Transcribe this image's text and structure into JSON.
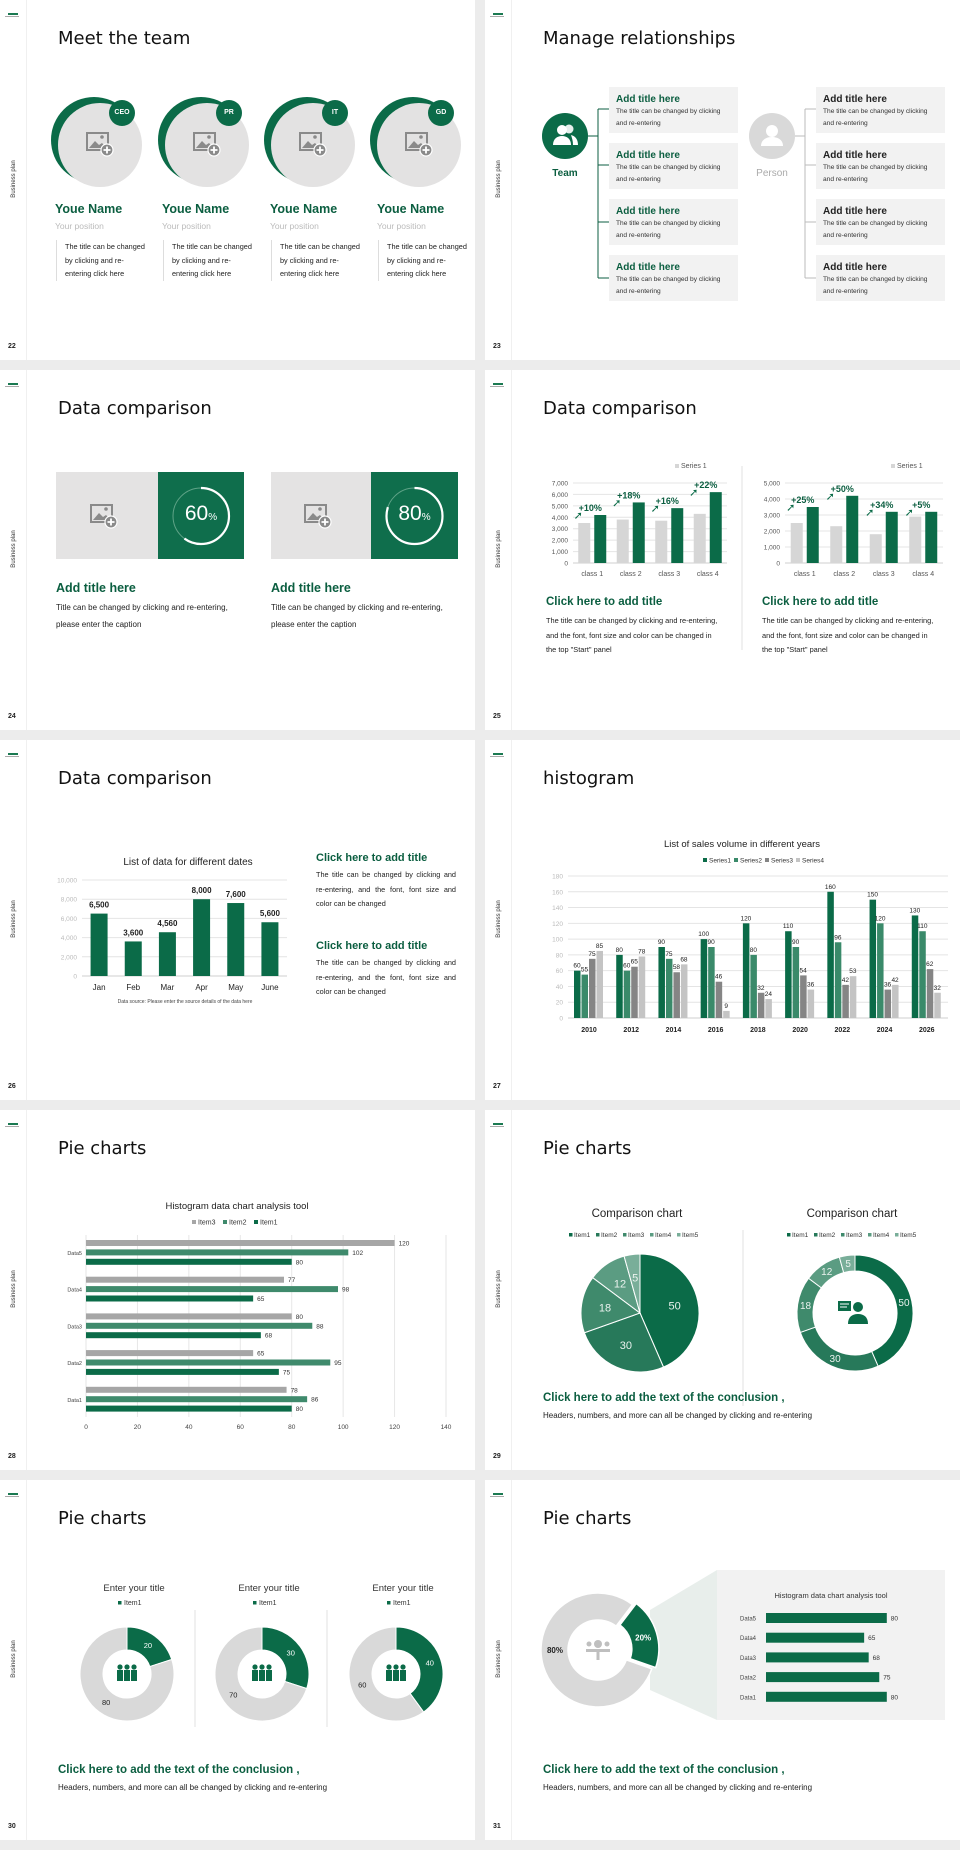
{
  "side_label": "Business plan",
  "colors": {
    "green": "#0b6b48",
    "green2": "#3a8a6a",
    "green_text": "#0b5e40",
    "gray": "#d6d6d6",
    "dark_gray": "#8a8a8a",
    "panel": "#f2f2f2"
  },
  "s22": {
    "number": "22",
    "title": "Meet the team",
    "members": [
      {
        "badge": "CEO",
        "name": "Youe Name",
        "position": "Your position",
        "desc": "The title can be changed by clicking and re-entering click here"
      },
      {
        "badge": "PR",
        "name": "Youe Name",
        "position": "Your position",
        "desc": "The title can be changed by clicking and re-entering click here"
      },
      {
        "badge": "IT",
        "name": "Youe Name",
        "position": "Your position",
        "desc": "The title can be changed by clicking and re-entering click here"
      },
      {
        "badge": "GD",
        "name": "Youe Name",
        "position": "Your position",
        "desc": "The title can be changed by clicking and re-entering click here"
      }
    ]
  },
  "s23": {
    "number": "23",
    "title": "Manage relationships",
    "team_label": "Team",
    "person_label": "Person",
    "left_boxes": [
      {
        "title": "Add title here",
        "desc": "The title can be changed by clicking and re-entering"
      },
      {
        "title": "Add title here",
        "desc": "The title can be changed by clicking and re-entering"
      },
      {
        "title": "Add title here",
        "desc": "The title can be changed by clicking and re-entering"
      },
      {
        "title": "Add title here",
        "desc": "The title can be changed by clicking and re-entering"
      }
    ],
    "right_boxes": [
      {
        "title": "Add title here",
        "desc": "The title can be changed by clicking and re-entering"
      },
      {
        "title": "Add title here",
        "desc": "The title can be changed by clicking and re-entering"
      },
      {
        "title": "Add title here",
        "desc": "The title can be changed by clicking and re-entering"
      },
      {
        "title": "Add title here",
        "desc": "The title can be changed by clicking and re-entering"
      }
    ]
  },
  "s24": {
    "number": "24",
    "title": "Data comparison",
    "cards": [
      {
        "percent": 60,
        "value": "60",
        "unit": "%",
        "heading": "Add title here",
        "desc": "Title can be changed by clicking and re-entering, please enter the caption"
      },
      {
        "percent": 80,
        "value": "80",
        "unit": "%",
        "heading": "Add title here",
        "desc": "Title can be changed by clicking and re-entering, please enter the caption"
      }
    ]
  },
  "s25": {
    "number": "25",
    "title": "Data comparison",
    "blocks": [
      {
        "heading": "Click here to add title",
        "desc": "The title can be changed by clicking and re-entering, and the font, font size and color can be changed in the top \"Start\" panel"
      },
      {
        "heading": "Click here to add title",
        "desc": "The title can be changed by clicking and re-entering, and the font, font size and color can be changed in the top \"Start\" panel"
      }
    ]
  },
  "s26": {
    "number": "26",
    "title": "Data comparison",
    "blocks": [
      {
        "heading": "Click here to add title",
        "desc": "The title can be changed by clicking and re-entering, and the font, font size and color can be changed"
      },
      {
        "heading": "Click here to add title",
        "desc": "The title can be changed by clicking and re-entering, and the font, font size and color can be changed"
      }
    ]
  },
  "s27": {
    "number": "27",
    "title": "histogram"
  },
  "s28": {
    "number": "28",
    "title": "Pie charts"
  },
  "s29": {
    "number": "29",
    "title": "Pie charts",
    "conclusion": "Click here to add the text of the conclusion ,",
    "conclusion_desc": "Headers, numbers, and more can all be changed by clicking and re-entering"
  },
  "s30": {
    "number": "30",
    "title": "Pie charts",
    "conclusion": "Click here to add the text of the conclusion ,",
    "conclusion_desc": "Headers, numbers, and more can all be changed by clicking and re-entering"
  },
  "s31": {
    "number": "31",
    "title": "Pie charts",
    "conclusion": "Click here to add the text of the conclusion ,",
    "conclusion_desc": "Headers, numbers, and more can all be changed by clicking and re-entering"
  },
  "chart_data": [
    {
      "type": "bar",
      "categories": [
        "class 1",
        "class 2",
        "class 3",
        "class 4"
      ],
      "ylim": [
        0,
        7000
      ],
      "yticks": [
        "0",
        "1,000",
        "2,000",
        "3,000",
        "4,000",
        "5,000",
        "6,000",
        "7,000"
      ],
      "legend": "Series 1",
      "series": [
        {
          "name": "Series 1",
          "values": [
            3500,
            3800,
            3700,
            4300
          ],
          "color": "#d6d6d6"
        },
        {
          "values": [
            4200,
            5300,
            4800,
            6200
          ],
          "color": "#0b6b48"
        }
      ],
      "annotations": [
        "+10%",
        "+18%",
        "+16%",
        "+22%"
      ],
      "grid": true
    },
    {
      "type": "bar",
      "categories": [
        "class 1",
        "class 2",
        "class 3",
        "class 4"
      ],
      "ylim": [
        0,
        5000
      ],
      "yticks": [
        "0",
        "1,000",
        "2,000",
        "3,000",
        "4,000",
        "5,000"
      ],
      "legend": "Series 1",
      "series": [
        {
          "name": "Series 1",
          "values": [
            2500,
            2300,
            1800,
            2900
          ],
          "color": "#d6d6d6"
        },
        {
          "values": [
            3500,
            4200,
            3200,
            3200
          ],
          "color": "#0b6b48"
        }
      ],
      "annotations": [
        "+25%",
        "+50%",
        "+34%",
        "+5%"
      ],
      "grid": true
    },
    {
      "type": "bar",
      "title": "List of data for different dates",
      "categories": [
        "Jan",
        "Feb",
        "Mar",
        "Apr",
        "May",
        "June"
      ],
      "values": [
        6500,
        3600,
        4560,
        8000,
        7600,
        5600
      ],
      "data_labels": [
        "6,500",
        "3,600",
        "4,560",
        "8,000",
        "7,600",
        "5,600"
      ],
      "ylim": [
        0,
        10000
      ],
      "yticks": [
        "0",
        "2,000",
        "4,000",
        "6,000",
        "8,000",
        "10,000"
      ],
      "note": "Data source: Please enter the source details of the data here",
      "grid": true
    },
    {
      "type": "bar",
      "title": "List of sales volume in different years",
      "categories": [
        "2010",
        "2012",
        "2014",
        "2016",
        "2018",
        "2020",
        "2022",
        "2024",
        "2026"
      ],
      "ylim": [
        0,
        180
      ],
      "yticks": [
        "0",
        "20",
        "40",
        "60",
        "80",
        "100",
        "120",
        "140",
        "160",
        "180"
      ],
      "legend_position": "top",
      "grid": true,
      "series": [
        {
          "name": "Series1",
          "values": [
            60,
            80,
            90,
            100,
            120,
            110,
            160,
            150,
            130
          ],
          "color": "#0b6b48"
        },
        {
          "name": "Series2",
          "values": [
            55,
            60,
            75,
            90,
            80,
            90,
            96,
            120,
            110
          ],
          "color": "#3a8a6a"
        },
        {
          "name": "Series3",
          "values": [
            75,
            65,
            58,
            46,
            32,
            54,
            42,
            36,
            62
          ],
          "color": "#858585"
        },
        {
          "name": "Series4",
          "values": [
            85,
            78,
            68,
            9,
            24,
            36,
            53,
            42,
            32
          ],
          "color": "#c4c4c4"
        }
      ]
    },
    {
      "type": "bar",
      "orientation": "horizontal",
      "title": "Histogram data chart analysis tool",
      "categories": [
        "Data5",
        "Data4",
        "Data3",
        "Data2",
        "Data1"
      ],
      "xlim": [
        0,
        140
      ],
      "xticks": [
        "0",
        "20",
        "40",
        "60",
        "80",
        "100",
        "120",
        "140"
      ],
      "legend_position": "top",
      "grid": true,
      "series": [
        {
          "name": "Item3",
          "values": [
            120,
            77,
            80,
            65,
            78
          ],
          "color": "#a6a6a6"
        },
        {
          "name": "Item2",
          "values": [
            102,
            98,
            88,
            95,
            86
          ],
          "color": "#3f8a6c"
        },
        {
          "name": "Item1",
          "values": [
            80,
            65,
            68,
            75,
            80
          ],
          "color": "#0b6b48"
        }
      ]
    },
    {
      "type": "pie",
      "title": "Comparison chart",
      "labels": [
        "Item1",
        "Item2",
        "Item3",
        "Item4",
        "Item5"
      ],
      "values": [
        50,
        30,
        18,
        12,
        5
      ],
      "colors": [
        "#0b6b48",
        "#27795a",
        "#3f8a6c",
        "#5b9c82",
        "#79ae99"
      ],
      "legend_position": "top"
    },
    {
      "type": "pie",
      "variant": "donut",
      "title": "Comparison chart",
      "labels": [
        "Item1",
        "Item2",
        "Item3",
        "Item4",
        "Item5"
      ],
      "values": [
        50,
        30,
        18,
        12,
        5
      ],
      "colors": [
        "#0b6b48",
        "#27795a",
        "#3f8a6c",
        "#5b9c82",
        "#79ae99"
      ],
      "legend_position": "top",
      "center_icon": "customer-service-icon"
    },
    {
      "type": "pie",
      "variant": "donut",
      "title": "Enter your title",
      "legend": "Item1",
      "values": [
        20,
        80
      ],
      "colors": [
        "#0b6b48",
        "#d9d9d9"
      ],
      "center_icon": "group-icon"
    },
    {
      "type": "pie",
      "variant": "donut",
      "title": "Enter your title",
      "legend": "Item1",
      "values": [
        30,
        70
      ],
      "colors": [
        "#0b6b48",
        "#d9d9d9"
      ],
      "center_icon": "group-icon"
    },
    {
      "type": "pie",
      "variant": "donut",
      "title": "Enter your title",
      "legend": "Item1",
      "values": [
        40,
        60
      ],
      "colors": [
        "#0b6b48",
        "#d9d9d9"
      ],
      "center_icon": "group-icon"
    },
    {
      "type": "pie",
      "variant": "donut",
      "values": [
        20,
        80
      ],
      "data_labels": [
        "20%",
        "80%"
      ],
      "colors": [
        "#0b6b48",
        "#d9d9d9"
      ],
      "center_icon": "meeting-icon"
    },
    {
      "type": "bar",
      "orientation": "horizontal",
      "title": "Histogram data chart analysis tool",
      "categories": [
        "Data5",
        "Data4",
        "Data3",
        "Data2",
        "Data1"
      ],
      "values": [
        80,
        65,
        68,
        75,
        80
      ],
      "color": "#0b6b48"
    }
  ]
}
